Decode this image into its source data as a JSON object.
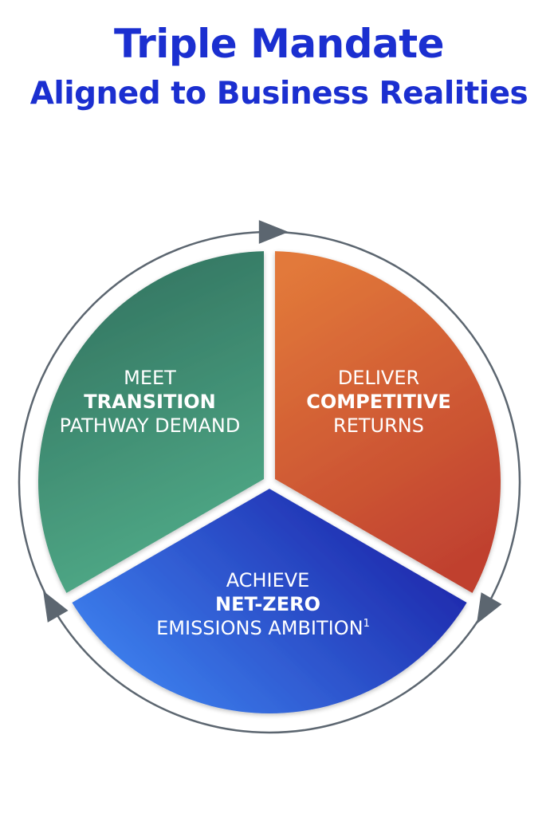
{
  "title": {
    "line1": "Triple Mandate",
    "line2": "Aligned to Business Realities"
  },
  "segments": [
    {
      "id": "transition",
      "line1": "MEET",
      "line2": "TRANSITION",
      "line3": "PATHWAY DEMAND",
      "colors": [
        "#2f6e5c",
        "#4fa886"
      ]
    },
    {
      "id": "returns",
      "line1": "DELIVER",
      "line2": "COMPETITIVE",
      "line3": "RETURNS",
      "colors": [
        "#e2793a",
        "#c0412f"
      ]
    },
    {
      "id": "net-zero",
      "line1": "ACHIEVE",
      "line2": "NET-ZERO",
      "line3": "EMISSIONS AMBITION",
      "footnote_mark": "1",
      "colors": [
        "#3f86f2",
        "#1a1fa5"
      ]
    }
  ],
  "ring_color": "#5c6670",
  "arrow_color": "#5c6670"
}
